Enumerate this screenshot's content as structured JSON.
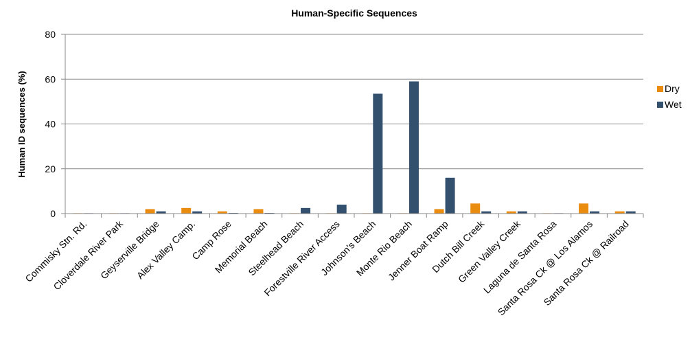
{
  "chart_data": {
    "type": "bar",
    "title": "Human-Specific Sequences",
    "y_label": "Human ID sequences (%)",
    "categories": [
      "Commisky Stn. Rd.",
      "Cloverdale River Park",
      "Geyserville Bridge",
      "Alex Valley Camp.",
      "Camp Rose",
      "Memorial Beach",
      "Steelhead Beach",
      "Forestville River Access",
      "Johnson's Beach",
      "Monte Rio Beach",
      "Jenner Boat Ramp",
      "Dutch Bill Creek",
      "Green Valley Creek",
      "Laguna de Santa Rosa",
      "Santa Rosa Ck @ Los Alamos",
      "Santa Rosa Ck @ Railroad"
    ],
    "series": [
      {
        "name": "Dry",
        "color": "#e98c10",
        "values": [
          0.2,
          0.2,
          2,
          2.5,
          1,
          2,
          0.2,
          0.2,
          0.2,
          0.2,
          2,
          4.5,
          1,
          0.2,
          4.5,
          1
        ]
      },
      {
        "name": "Wet",
        "color": "#33506f",
        "values": [
          0.2,
          0.2,
          1,
          1,
          0.3,
          0.3,
          2.5,
          4,
          53.5,
          59,
          16,
          1,
          1,
          0.2,
          1,
          1
        ]
      }
    ],
    "ylim": [
      0,
      80
    ],
    "yticks": [
      0,
      20,
      40,
      60,
      80
    ],
    "grid": true,
    "legend": "right"
  }
}
